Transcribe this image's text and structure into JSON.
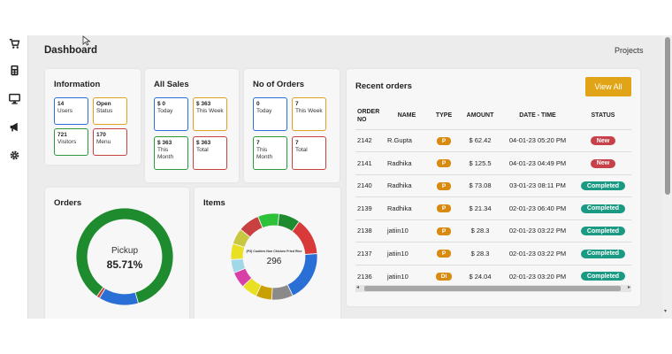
{
  "header": {
    "title": "Dashboard",
    "projects_label": "Projects"
  },
  "sidebar": {
    "icons": [
      "cart-icon",
      "calculator-icon",
      "monitor-icon",
      "megaphone-icon",
      "gear-icon"
    ]
  },
  "information": {
    "title": "Information",
    "tiles": [
      {
        "value": "14",
        "label": "Users"
      },
      {
        "value": "Open",
        "label": "Status"
      },
      {
        "value": "721",
        "label": "Visitors"
      },
      {
        "value": "170",
        "label": "Menu"
      }
    ]
  },
  "all_sales": {
    "title": "All Sales",
    "tiles": [
      {
        "value": "$ 0",
        "label": "Today"
      },
      {
        "value": "$ 363",
        "label": "This Week"
      },
      {
        "value": "$ 363",
        "label": "This Month"
      },
      {
        "value": "$ 363",
        "label": "Total"
      }
    ]
  },
  "no_of_orders": {
    "title": "No of Orders",
    "tiles": [
      {
        "value": "0",
        "label": "Today"
      },
      {
        "value": "7",
        "label": "This Week"
      },
      {
        "value": "7",
        "label": "This Month"
      },
      {
        "value": "7",
        "label": "Total"
      }
    ]
  },
  "recent_orders": {
    "title": "Recent orders",
    "view_all_label": "View All",
    "columns": [
      "ORDER NO",
      "NAME",
      "TYPE",
      "AMOUNT",
      "DATE - TIME",
      "STATUS"
    ],
    "rows": [
      {
        "order_no": "2142",
        "name": "R.Gupta",
        "type": "P",
        "amount": "$ 62.42",
        "datetime": "04-01-23 05:20 PM",
        "status": "New"
      },
      {
        "order_no": "2141",
        "name": "Radhika",
        "type": "P",
        "amount": "$ 125.5",
        "datetime": "04-01-23 04:49 PM",
        "status": "New"
      },
      {
        "order_no": "2140",
        "name": "Radhika",
        "type": "P",
        "amount": "$ 73.08",
        "datetime": "03-01-23 08:11 PM",
        "status": "Completed"
      },
      {
        "order_no": "2139",
        "name": "Radhika",
        "type": "P",
        "amount": "$ 21.34",
        "datetime": "02-01-23 06:40 PM",
        "status": "Completed"
      },
      {
        "order_no": "2138",
        "name": "jatiin10",
        "type": "P",
        "amount": "$ 28.3",
        "datetime": "02-01-23 03:22 PM",
        "status": "Completed"
      },
      {
        "order_no": "2137",
        "name": "jatiin10",
        "type": "P",
        "amount": "$ 28.3",
        "datetime": "02-01-23 03:22 PM",
        "status": "Completed"
      },
      {
        "order_no": "2136",
        "name": "jatiin10",
        "type": "DI",
        "amount": "$ 24.04",
        "datetime": "02-01-23 03:20 PM",
        "status": "Completed"
      }
    ]
  },
  "orders_chart": {
    "title": "Orders",
    "center_label": "Pickup",
    "center_value": "85.71%",
    "slices": [
      {
        "value": 85.71,
        "color": "#1e8c2e"
      },
      {
        "value": 13.29,
        "color": "#2a6fd6"
      },
      {
        "value": 1.0,
        "color": "#c84040"
      }
    ]
  },
  "items_chart": {
    "title": "Items",
    "center_label": "(P3) Cookies Non Chicken Fried Rice",
    "center_value": "296",
    "slices": [
      {
        "value": 8,
        "color": "#2ec23a"
      },
      {
        "value": 8,
        "color": "#1e8c2e"
      },
      {
        "value": 14,
        "color": "#d83a3a"
      },
      {
        "value": 19,
        "color": "#2a6fd6"
      },
      {
        "value": 8,
        "color": "#8a8a8a"
      },
      {
        "value": 6,
        "color": "#c8a000"
      },
      {
        "value": 6,
        "color": "#e8e020"
      },
      {
        "value": 6,
        "color": "#d840a8"
      },
      {
        "value": 5,
        "color": "#a0d8e8"
      },
      {
        "value": 6,
        "color": "#e8e020"
      },
      {
        "value": 6,
        "color": "#c8c840"
      },
      {
        "value": 8,
        "color": "#c84040"
      }
    ]
  },
  "colors": {
    "accent": "#e0a416",
    "new": "#c8404a",
    "completed": "#1a9a82",
    "type": "#d98a10"
  }
}
